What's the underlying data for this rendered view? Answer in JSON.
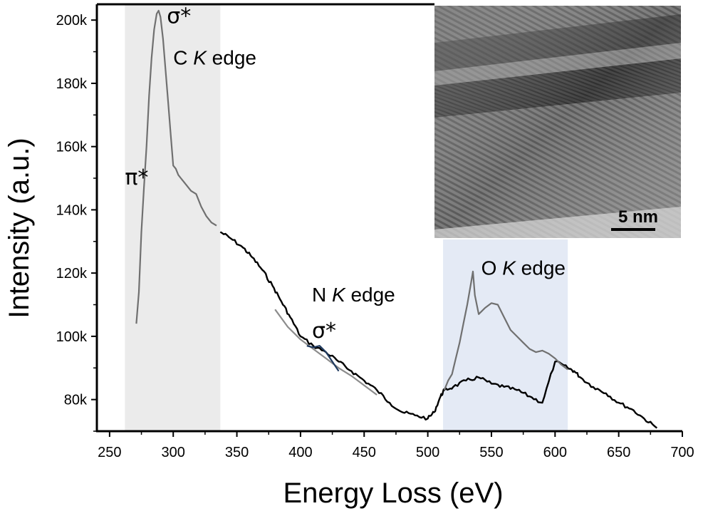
{
  "chart_data": {
    "type": "line",
    "xlabel": "Energy Loss (eV)",
    "ylabel": "Intensity (a.u.)",
    "xlim": [
      240,
      700
    ],
    "ylim": [
      70000,
      205000
    ],
    "xticks": [
      250,
      300,
      350,
      400,
      450,
      500,
      550,
      600,
      650,
      700
    ],
    "xtick_labels": [
      "250",
      "300",
      "350",
      "400",
      "450",
      "500",
      "550",
      "600",
      "650",
      "700"
    ],
    "yticks": [
      80000,
      100000,
      120000,
      140000,
      160000,
      180000,
      200000
    ],
    "ytick_labels": [
      "80k",
      "100k",
      "120k",
      "140k",
      "160k",
      "180k",
      "200k"
    ],
    "shaded_regions": [
      {
        "name": "C K edge region",
        "x_range": [
          262,
          337
        ],
        "color": "#ebebeb"
      },
      {
        "name": "O K edge region",
        "x_range": [
          512,
          610
        ],
        "color": "#e4eaf5"
      }
    ],
    "series": [
      {
        "name": "C K edge (background-subtracted)",
        "color": "#707070",
        "x": [
          271,
          273,
          275,
          277,
          279,
          281,
          283,
          285,
          287,
          288.5,
          290,
          292,
          294,
          296,
          298,
          300,
          302,
          304,
          306,
          310,
          314,
          318,
          322,
          326,
          330,
          334
        ],
        "y": [
          104000,
          114000,
          133000,
          147000,
          160000,
          176000,
          188000,
          197000,
          202000,
          203000,
          201000,
          194000,
          184000,
          174000,
          164000,
          154000,
          153000,
          151000,
          150000,
          148000,
          146000,
          145000,
          141000,
          138000,
          136000,
          135000
        ]
      },
      {
        "name": "EELS spectrum",
        "color": "#000000",
        "x": [
          337,
          345,
          355,
          362,
          370,
          378,
          385,
          392,
          400,
          410,
          420,
          430,
          440,
          450,
          460,
          470,
          480,
          490,
          500,
          505,
          510,
          513,
          520,
          530,
          540,
          550,
          560,
          570,
          580,
          590,
          600,
          610,
          615,
          620,
          630,
          640,
          650,
          660,
          670,
          680
        ],
        "y": [
          133000,
          131000,
          128000,
          125000,
          121000,
          116000,
          111000,
          106000,
          100000,
          97000,
          95000,
          92000,
          89000,
          86000,
          83000,
          79000,
          76000,
          75000,
          74000,
          76000,
          81000,
          83000,
          84000,
          86000,
          87000,
          85000,
          84000,
          83000,
          81000,
          79000,
          92000,
          90000,
          89000,
          87000,
          84000,
          82000,
          79000,
          77000,
          74000,
          71000
        ]
      },
      {
        "name": "O K edge (background-subtracted)",
        "color": "#707070",
        "x": [
          513,
          516,
          519,
          522,
          525,
          528,
          531,
          534,
          535.5,
          537,
          540,
          545,
          550,
          555,
          560,
          565,
          570,
          575,
          580,
          585,
          590,
          595,
          600,
          605,
          610
        ],
        "y": [
          83000,
          86000,
          88000,
          93000,
          98000,
          104000,
          110000,
          117000,
          120500,
          113000,
          107000,
          109000,
          110500,
          110000,
          106000,
          102000,
          100000,
          98000,
          96000,
          95000,
          95500,
          94500,
          93000,
          91000,
          89500
        ]
      },
      {
        "name": "N K edge fit",
        "color": "#8c8c8c",
        "x": [
          380,
          390,
          400,
          410,
          420,
          430,
          440,
          450,
          460
        ],
        "y": [
          108500,
          103000,
          99000,
          96000,
          93000,
          90000,
          87500,
          84500,
          81500
        ]
      },
      {
        "name": "N K edge signal",
        "color": "#1f3a5f",
        "x": [
          405,
          410,
          415,
          420,
          425,
          430
        ],
        "y": [
          97000,
          96500,
          97000,
          95000,
          92000,
          89000
        ]
      }
    ],
    "annotations": [
      {
        "id": "sigma-c",
        "text": "σ*",
        "x": 295,
        "y": 199000
      },
      {
        "id": "c-edge",
        "text_parts": [
          "C ",
          "K",
          " edge"
        ],
        "x": 300,
        "y": 186000
      },
      {
        "id": "pi-c",
        "text": "π*",
        "x": 262,
        "y": 148000
      },
      {
        "id": "n-edge",
        "text_parts": [
          "N ",
          "K",
          " edge"
        ],
        "x": 409,
        "y": 111000
      },
      {
        "id": "sigma-n",
        "text": "σ*",
        "x": 409,
        "y": 99500
      },
      {
        "id": "o-edge",
        "text_parts": [
          "O ",
          "K",
          " edge"
        ],
        "x": 542,
        "y": 119500
      }
    ],
    "inset": {
      "description": "TEM micrograph",
      "scale_bar_label": "5 nm"
    }
  }
}
